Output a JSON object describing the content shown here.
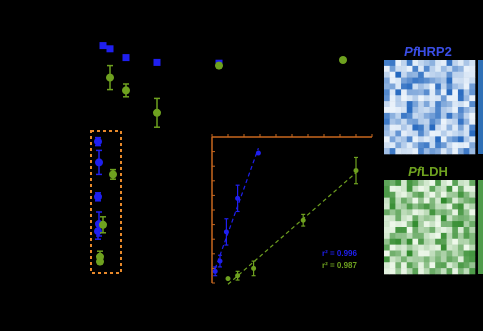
{
  "colors": {
    "hrp2": "#1f1ff0",
    "ldh": "#6ea11f",
    "inset_axis": "#c8671e",
    "highlight_box": "#e8892a"
  },
  "heatmaps": [
    {
      "name_italic": "Pf",
      "name_rest": "HRP2",
      "title_color": "#3a4ee6",
      "palette": "blue"
    },
    {
      "name_italic": "Pf",
      "name_rest": "LDH",
      "title_color": "#6ea11f",
      "palette": "green"
    }
  ],
  "chart_data": [
    {
      "type": "scatter",
      "series": [
        {
          "marker": "square",
          "color": "#1f1ff0",
          "points": [
            {
              "x": 1,
              "y": 0.32
            },
            {
              "x": 2,
              "y": 0.36
            },
            {
              "x": 3,
              "y": 0.47
            },
            {
              "x": 4,
              "y": 0.53
            },
            {
              "x": 5,
              "y": 0.54
            }
          ],
          "highlighted_points": [
            {
              "y": 1.52,
              "err": 0.05
            },
            {
              "y": 1.78,
              "err": 0.15
            },
            {
              "y": 2.21,
              "err": 0.05
            },
            {
              "y": 2.55,
              "err": 0.15
            },
            {
              "y": 2.64,
              "err": 0.1
            }
          ]
        },
        {
          "marker": "circle",
          "color": "#6ea11f",
          "points": [
            {
              "x": 1,
              "y": 0.72,
              "err": 0.15
            },
            {
              "x": 2,
              "y": 0.88,
              "err": 0.08
            },
            {
              "x": 3,
              "y": 1.16,
              "err": 0.18
            },
            {
              "x": 4,
              "y": 0.57,
              "err": 0.03
            },
            {
              "x": 5,
              "y": 0.5
            }
          ],
          "highlighted_points": [
            {
              "y": 1.93,
              "err": 0.06
            },
            {
              "y": 2.56,
              "err": 0.1
            },
            {
              "y": 2.96,
              "err": 0.07
            },
            {
              "y": 3.02,
              "err": 0.03
            }
          ]
        }
      ],
      "grid": false,
      "legend": "none"
    },
    {
      "type": "scatter",
      "fits": "linear",
      "xlim": [
        0,
        10
      ],
      "ylim": [
        0,
        10
      ],
      "series": [
        {
          "color": "#1f1ff0",
          "r2_label": "r² = 0.996",
          "points": [
            {
              "x": 0.2,
              "y": 0.8,
              "err": 0.3
            },
            {
              "x": 0.5,
              "y": 1.5,
              "err": 0.4
            },
            {
              "x": 0.9,
              "y": 3.5,
              "err": 0.9
            },
            {
              "x": 1.6,
              "y": 5.8,
              "err": 0.9
            },
            {
              "x": 2.9,
              "y": 8.9
            }
          ]
        },
        {
          "color": "#6ea11f",
          "r2_label": "r² = 0.987",
          "points": [
            {
              "x": 1.0,
              "y": 0.3
            },
            {
              "x": 1.6,
              "y": 0.5,
              "err": 0.3
            },
            {
              "x": 2.6,
              "y": 1.0,
              "err": 0.5
            },
            {
              "x": 5.7,
              "y": 4.3,
              "err": 0.4
            },
            {
              "x": 9.0,
              "y": 7.7,
              "err": 0.9
            }
          ]
        }
      ],
      "grid": false,
      "legend": "none"
    }
  ]
}
